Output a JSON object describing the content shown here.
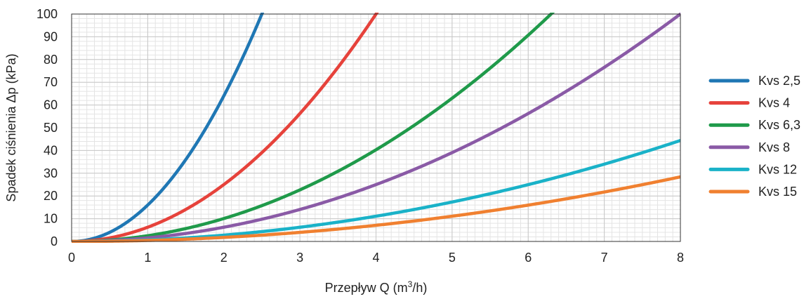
{
  "chart_data": {
    "type": "line",
    "title": "",
    "xlabel": "Przepływ Q (m³/h)",
    "ylabel": "Spadek ciśnienia Δp (kPa)",
    "xlim": [
      0,
      8
    ],
    "ylim": [
      0,
      100
    ],
    "x_ticks": [
      0,
      1,
      2,
      3,
      4,
      5,
      6,
      7,
      8
    ],
    "y_ticks": [
      0,
      10,
      20,
      30,
      40,
      50,
      60,
      70,
      80,
      90,
      100
    ],
    "grid": true,
    "legend_position": "right",
    "x": [
      0,
      0.5,
      1,
      1.5,
      2,
      2.5,
      3,
      3.5,
      4,
      4.5,
      5,
      5.5,
      6,
      6.5,
      7,
      7.5,
      8
    ],
    "series": [
      {
        "name": "Kvs 2,5",
        "color": "#1f77b4",
        "values": [
          0,
          5,
          16,
          36,
          64,
          100,
          null,
          null,
          null,
          null,
          null,
          null,
          null,
          null,
          null,
          null,
          null
        ]
      },
      {
        "name": "Kvs 4",
        "color": "#e6423b",
        "values": [
          0,
          1.6,
          6.3,
          14.1,
          25,
          39.1,
          56.3,
          76.6,
          100,
          null,
          null,
          null,
          null,
          null,
          null,
          null,
          null
        ]
      },
      {
        "name": "Kvs 6,3",
        "color": "#1f9a4a",
        "values": [
          0,
          0.6,
          2.5,
          5.7,
          10.1,
          15.7,
          22.7,
          30.9,
          40.3,
          51,
          63,
          76.2,
          90.7,
          null,
          null,
          null,
          null
        ]
      },
      {
        "name": "Kvs 8",
        "color": "#8a5aa6",
        "values": [
          0,
          0.4,
          1.6,
          3.5,
          6.3,
          9.8,
          14.1,
          19.1,
          25,
          31.6,
          39.1,
          47.3,
          56.3,
          66,
          76.6,
          87.9,
          100
        ]
      },
      {
        "name": "Kvs 12",
        "color": "#1ab2c8",
        "values": [
          0,
          0.2,
          0.7,
          1.6,
          2.8,
          4.3,
          6.3,
          8.5,
          11.1,
          14.1,
          17.4,
          21,
          25,
          29.3,
          34,
          39.1,
          44.4
        ]
      },
      {
        "name": "Kvs 15",
        "color": "#f08030",
        "values": [
          0,
          0.1,
          0.4,
          1,
          1.8,
          2.8,
          4,
          5.4,
          7.1,
          9,
          11.1,
          13.4,
          16,
          18.8,
          21.8,
          25,
          28.4
        ]
      }
    ]
  }
}
